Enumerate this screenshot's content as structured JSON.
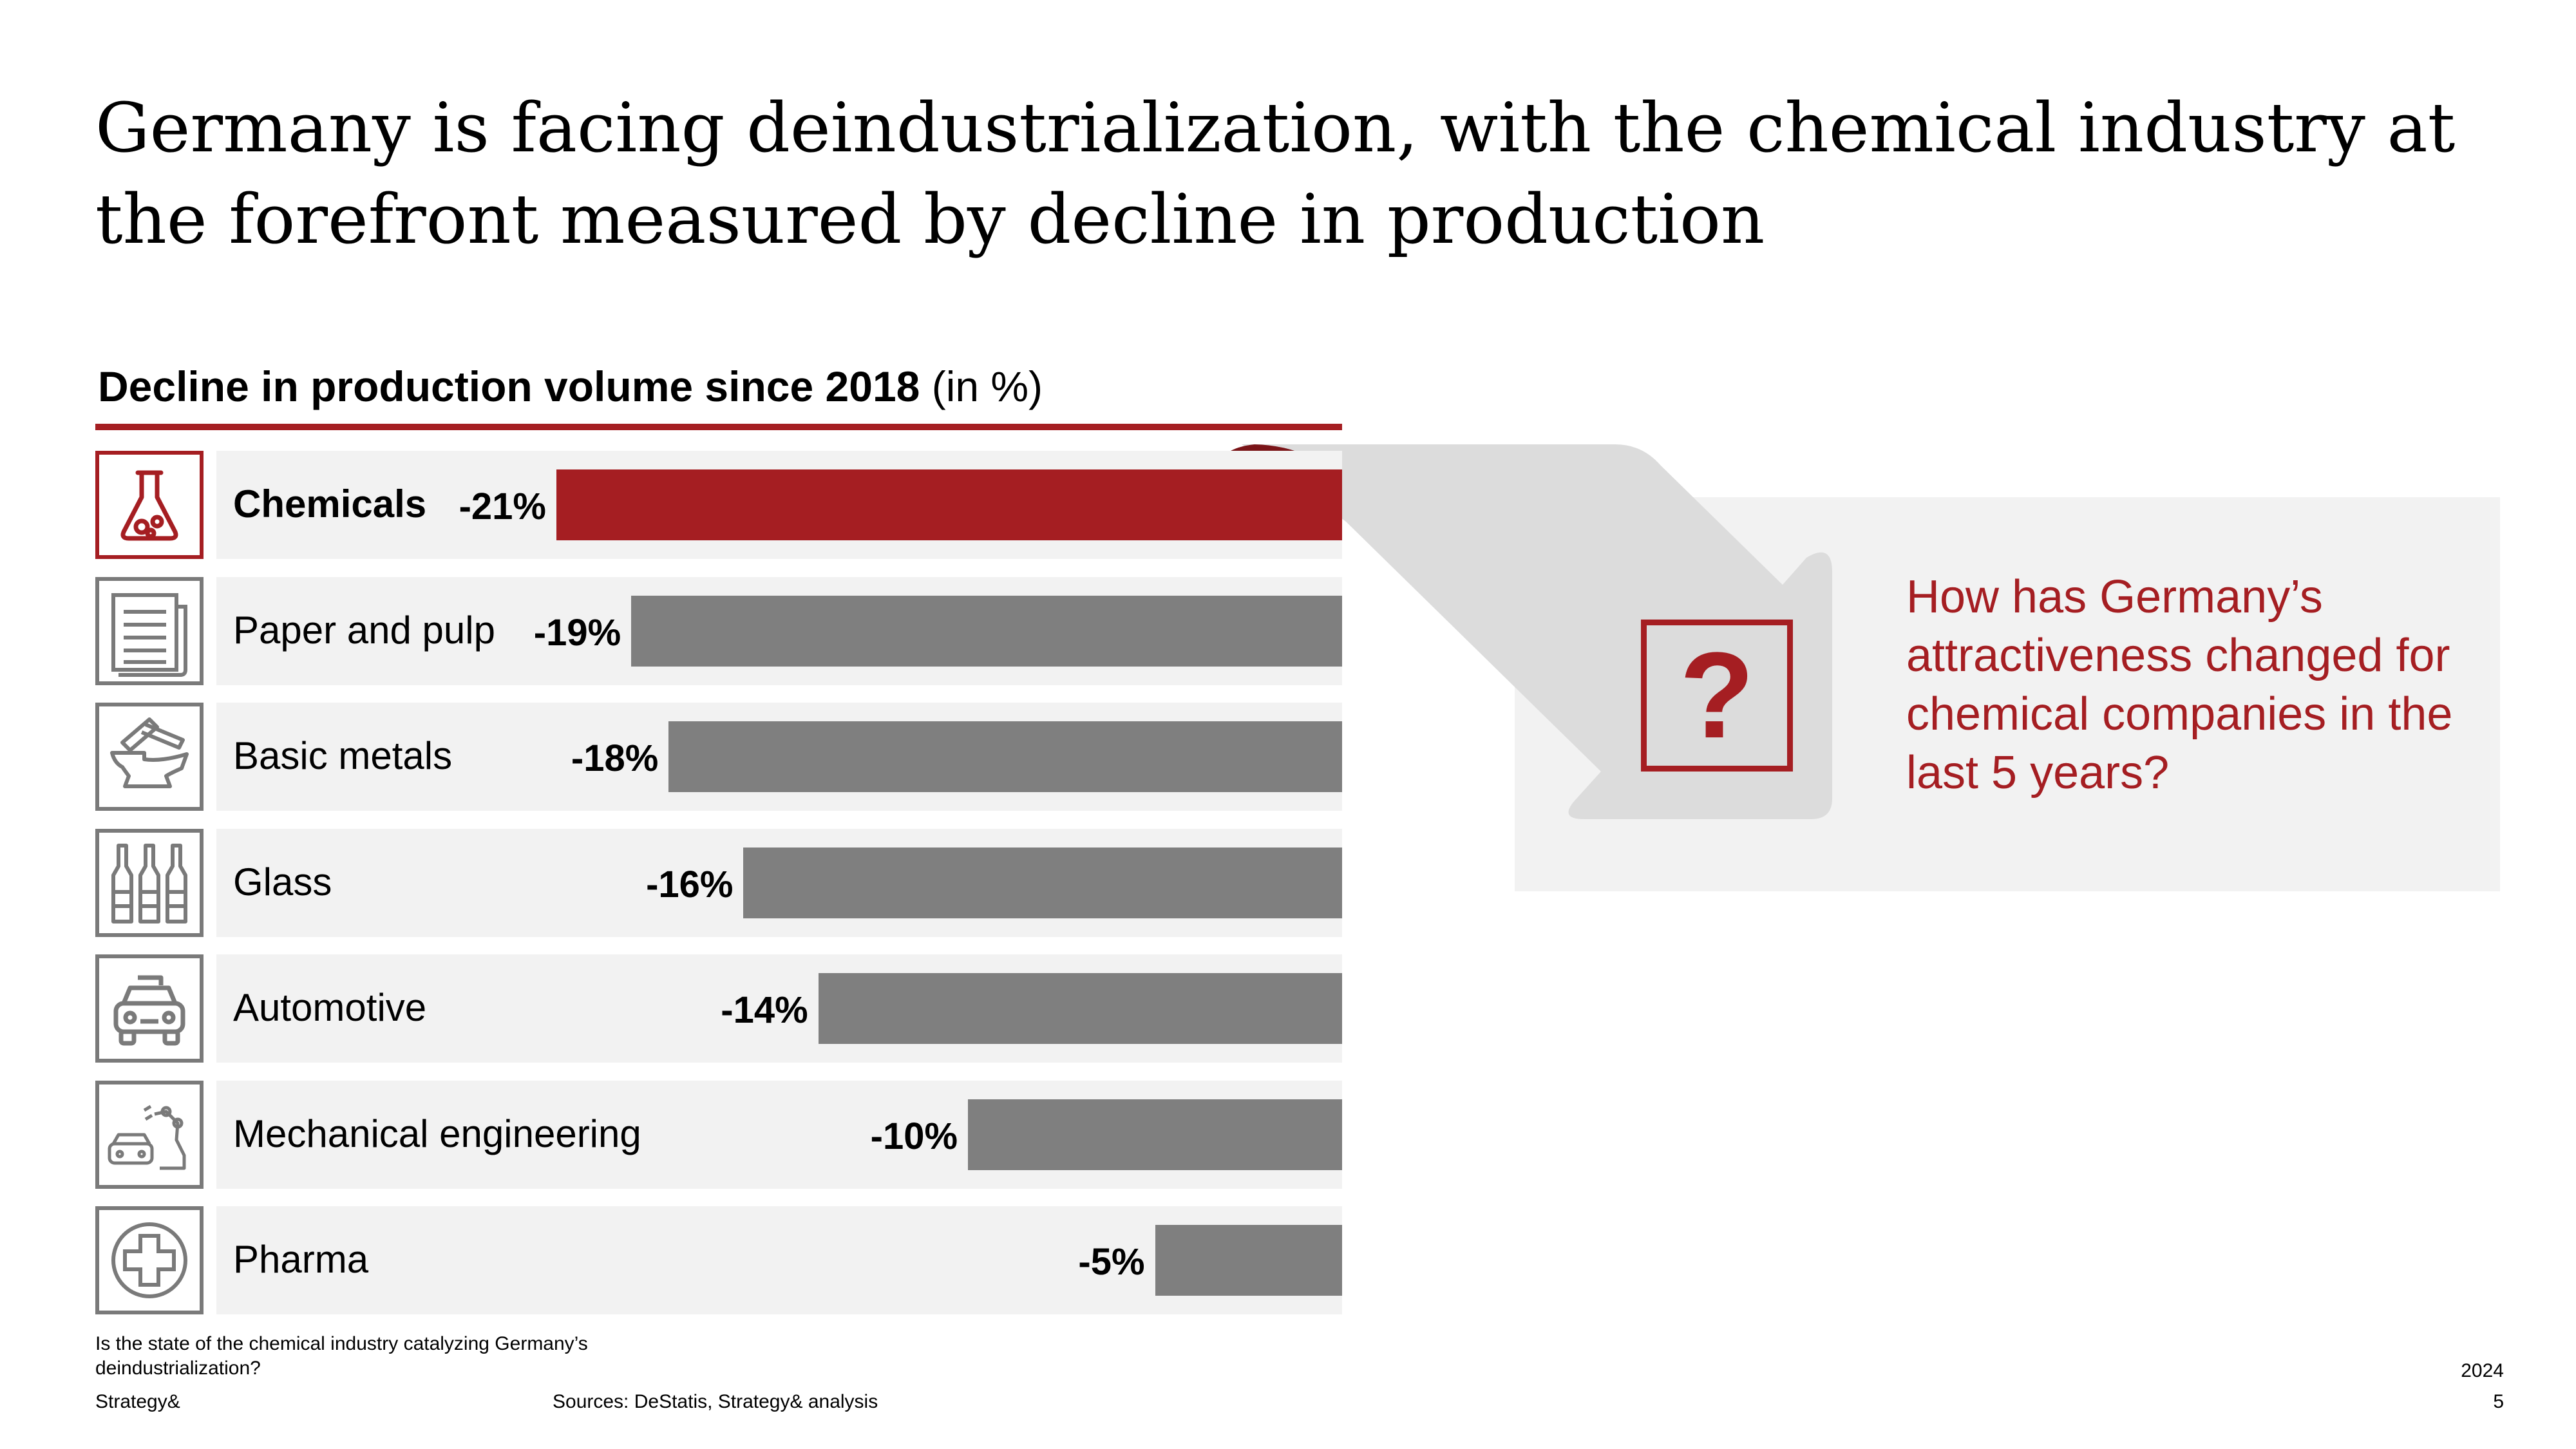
{
  "slide": {
    "title": "Germany is facing deindustrialization, with the chemical industry at the forefront measured by decline in production"
  },
  "chart_data": {
    "type": "bar",
    "orientation": "horizontal",
    "title_bold": "Decline in production volume since 2018",
    "title_unit": " (in %)",
    "categories": [
      "Chemicals",
      "Paper and pulp",
      "Basic metals",
      "Glass",
      "Automotive",
      "Mechanical engineering",
      "Pharma"
    ],
    "values": [
      -21,
      -19,
      -18,
      -16,
      -14,
      -10,
      -5
    ],
    "value_labels": [
      "-21%",
      "-19%",
      "-18%",
      "-16%",
      "-14%",
      "-10%",
      "-5%"
    ],
    "highlight": "Chemicals",
    "colors": {
      "highlight": "#a51e22",
      "default": "#7f7f7f"
    },
    "icons": [
      "flask-icon",
      "newspaper-icon",
      "anvil-hammer-icon",
      "bottles-icon",
      "car-icon",
      "robot-arm-icon",
      "medical-cross-icon"
    ]
  },
  "callout": {
    "question": "How has Germany’s attractiveness changed for chemical companies in the last 5 years?",
    "symbol": "?"
  },
  "footer": {
    "note": "Is the state of the chemical industry catalyzing Germany’s deindustrialization?",
    "brand": "Strategy&",
    "source": "Sources: DeStatis, Strategy& analysis",
    "year": "2024",
    "page": "5"
  }
}
